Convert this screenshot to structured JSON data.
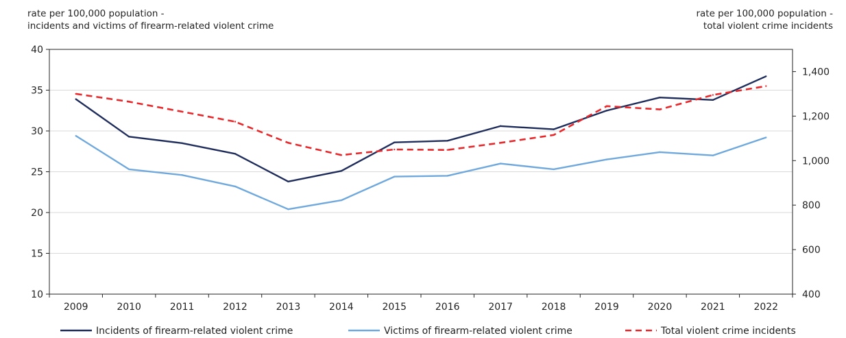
{
  "chart_data": {
    "type": "line",
    "title": "",
    "x": [
      "2009",
      "2010",
      "2011",
      "2012",
      "2013",
      "2014",
      "2015",
      "2016",
      "2017",
      "2018",
      "2019",
      "2020",
      "2021",
      "2022"
    ],
    "y_left": {
      "label_lines": [
        "rate per 100,000 population -",
        "incidents and victims of firearm-related violent crime"
      ],
      "ylim": [
        10,
        40
      ],
      "ticks": [
        10,
        15,
        20,
        25,
        30,
        35,
        40
      ]
    },
    "y_right": {
      "label_lines": [
        "rate per 100,000 population -",
        "total violent crime incidents"
      ],
      "ylim": [
        400,
        1500
      ],
      "ticks": [
        400,
        600,
        800,
        1000,
        1200,
        1400
      ],
      "tick_labels": [
        "400",
        "600",
        "800",
        "1,000",
        "1,200",
        "1,400"
      ]
    },
    "grid": true,
    "legend_position": "bottom",
    "series": [
      {
        "name": "Incidents of firearm-related violent crime",
        "axis": "left",
        "color": "#1f2d5c",
        "dash": "solid",
        "values": [
          33.9,
          29.3,
          28.5,
          27.2,
          23.8,
          25.1,
          28.6,
          28.8,
          30.6,
          30.2,
          32.5,
          34.1,
          33.8,
          36.7
        ]
      },
      {
        "name": "Victims of firearm-related violent crime",
        "axis": "left",
        "color": "#6fa8dc",
        "dash": "solid",
        "values": [
          29.4,
          25.3,
          24.6,
          23.2,
          20.4,
          21.5,
          24.4,
          24.5,
          26.0,
          25.3,
          26.5,
          27.4,
          27.0,
          29.2
        ]
      },
      {
        "name": "Total violent crime incidents",
        "axis": "right",
        "color": "#e8272a",
        "dash": "dashed",
        "values": [
          1300,
          1265,
          1220,
          1175,
          1080,
          1025,
          1050,
          1048,
          1080,
          1115,
          1245,
          1230,
          1295,
          1335
        ]
      }
    ]
  }
}
